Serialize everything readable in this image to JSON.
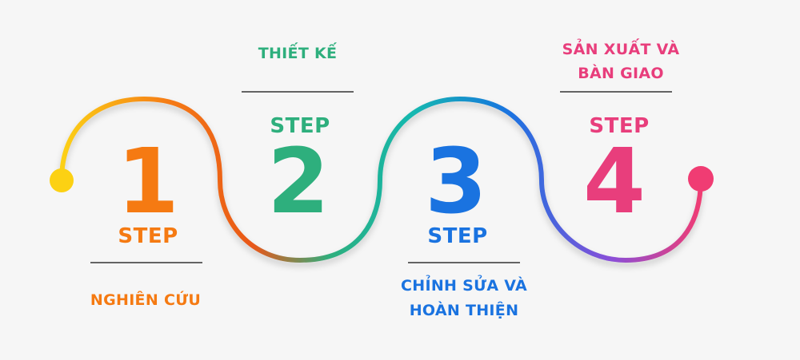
{
  "steps": [
    {
      "word": "STEP",
      "number": "1",
      "caption_lines": [
        "NGHIÊN CỨU"
      ],
      "color": "#f57a12"
    },
    {
      "word": "STEP",
      "number": "2",
      "caption_lines": [
        "THIẾT KẾ"
      ],
      "color": "#2eaf7d"
    },
    {
      "word": "STEP",
      "number": "3",
      "caption_lines": [
        "CHỈNH SỬA VÀ",
        "HOÀN THIỆN"
      ],
      "color": "#1a73e0"
    },
    {
      "word": "STEP",
      "number": "4",
      "caption_lines": [
        "SẢN XUẤT VÀ",
        "BÀN GIAO"
      ],
      "color": "#e83e7c"
    }
  ],
  "colors": {
    "background": "#f6f6f6",
    "divider": "#333333",
    "start_dot": "#fcd113",
    "end_dot": "#f03c73",
    "gradient": [
      "#fcd113",
      "#f57a12",
      "#e8571a",
      "#2eaf7d",
      "#14b8b0",
      "#1a73e0",
      "#8a4fd8",
      "#f03c73"
    ]
  }
}
